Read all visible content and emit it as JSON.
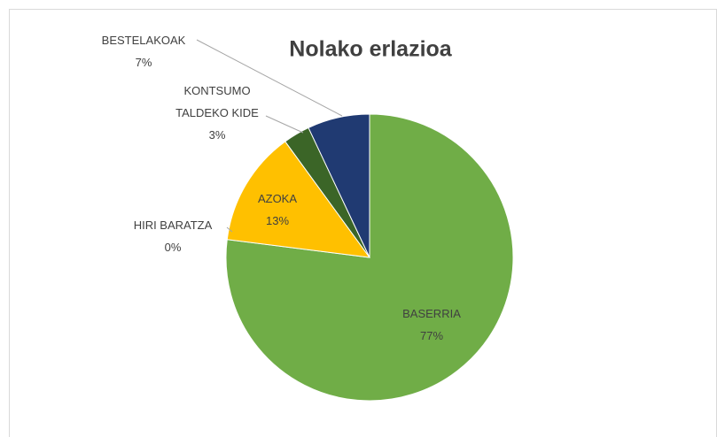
{
  "chart_data": {
    "type": "pie",
    "title": "Nolako erlazioa",
    "categories": [
      "BASERRIA",
      "HIRI BARATZA",
      "AZOKA",
      "KONTSUMO TALDEKO KIDE",
      "BESTELAKOAK"
    ],
    "values": [
      77,
      0,
      13,
      3,
      7
    ],
    "value_labels": [
      "77%",
      "0%",
      "13%",
      "3%",
      "7%"
    ],
    "colors": [
      "#70ad47",
      "#a5a5a5",
      "#ffc000",
      "#3b6527",
      "#203a72"
    ]
  }
}
